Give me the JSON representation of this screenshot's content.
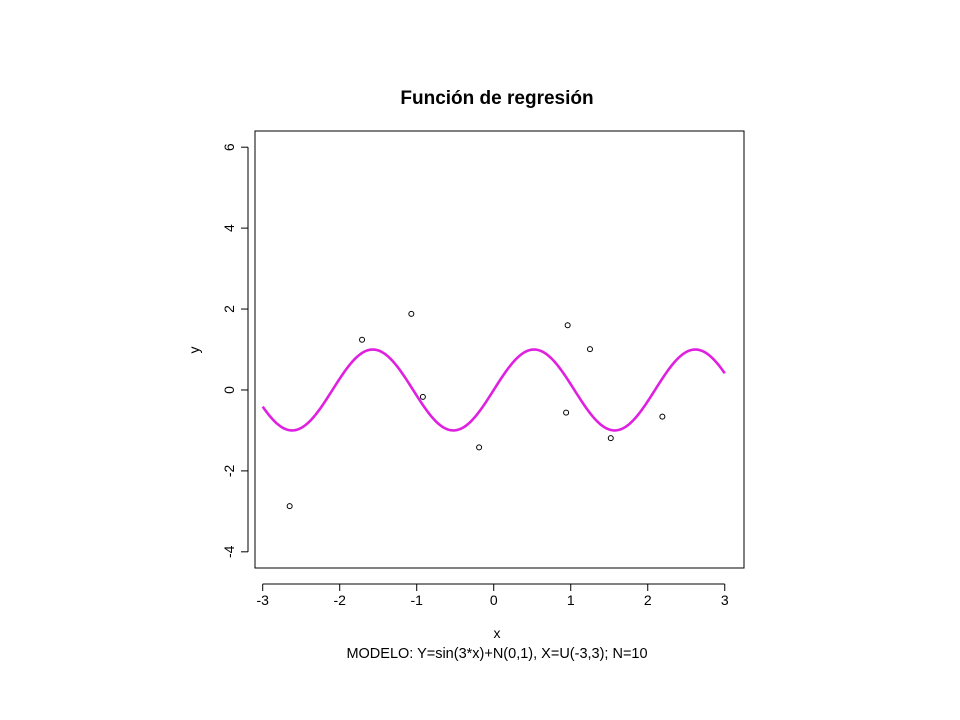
{
  "chart_data": {
    "type": "scatter",
    "title": "Función de regresión",
    "xlabel": "x",
    "ylabel": "y",
    "subtitle": "MODELO: Y=sin(3*x)+N(0,1), X=U(-3,3);  N=10",
    "xlim": [
      -3.1,
      3.25
    ],
    "ylim": [
      -4.4,
      6.4
    ],
    "x_ticks": [
      -3,
      -2,
      -1,
      0,
      1,
      2,
      3
    ],
    "x_tick_labels": [
      "-3",
      "-2",
      "-1",
      "0",
      "1",
      "2",
      "3"
    ],
    "y_ticks": [
      -4,
      -2,
      0,
      2,
      4,
      6
    ],
    "y_tick_labels": [
      "-4",
      "-2",
      "0",
      "2",
      "4",
      "6"
    ],
    "grid": false,
    "series": [
      {
        "kind": "points",
        "x": [
          -2.65,
          -1.71,
          -1.07,
          -0.92,
          -0.19,
          0.94,
          0.96,
          1.25,
          1.52,
          2.19
        ],
        "y": [
          -2.87,
          1.24,
          1.88,
          -0.17,
          -1.42,
          -0.56,
          1.6,
          1.01,
          -1.19,
          -0.66
        ],
        "color": "#000000"
      },
      {
        "kind": "curve",
        "function": "sin(3*x)",
        "x_range": [
          -3.0,
          3.0
        ],
        "color": "#e020e0"
      }
    ]
  }
}
